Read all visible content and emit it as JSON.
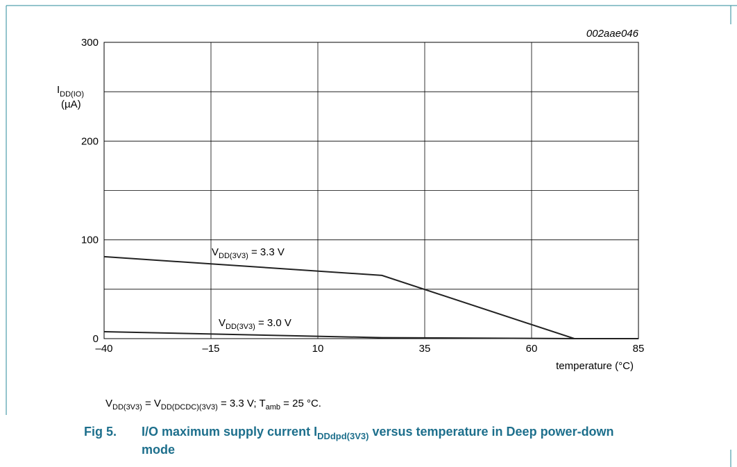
{
  "chart_data": {
    "type": "line",
    "tag": "002aae046",
    "y_label": [
      "I",
      "DD(IO)",
      "(µA)"
    ],
    "x_label": "temperature (°C)",
    "x": [
      -40,
      25,
      70,
      85
    ],
    "series": [
      {
        "name": [
          "V",
          "DD(3V3)",
          " = 3.3 V"
        ],
        "color": "#222222",
        "values": [
          83,
          64,
          0,
          0
        ]
      },
      {
        "name": [
          "V",
          "DD(3V3)",
          " = 3.0 V"
        ],
        "color": "#222222",
        "values": [
          7,
          1,
          0,
          0
        ]
      }
    ],
    "xlim": [
      -40,
      85
    ],
    "xticks": [
      {
        "value": -40,
        "label": "–40"
      },
      {
        "value": -15,
        "label": "–15"
      },
      10,
      35,
      60,
      85
    ],
    "ylim": [
      0,
      300
    ],
    "yticks": [
      0,
      100,
      200,
      300
    ],
    "ygrid": [
      0,
      50,
      100,
      150,
      200,
      250,
      300
    ],
    "grid": true,
    "note": [
      "V",
      "DD(3V3)",
      " = V",
      "DD(DCDC)(3V3)",
      " = 3.3 V; T",
      "amb",
      " = 25 °C."
    ],
    "caption": [
      "Fig 5.",
      "I/O maximum supply current I",
      "DDdpd(3V3)",
      " versus temperature in Deep power-down",
      "mode"
    ]
  }
}
